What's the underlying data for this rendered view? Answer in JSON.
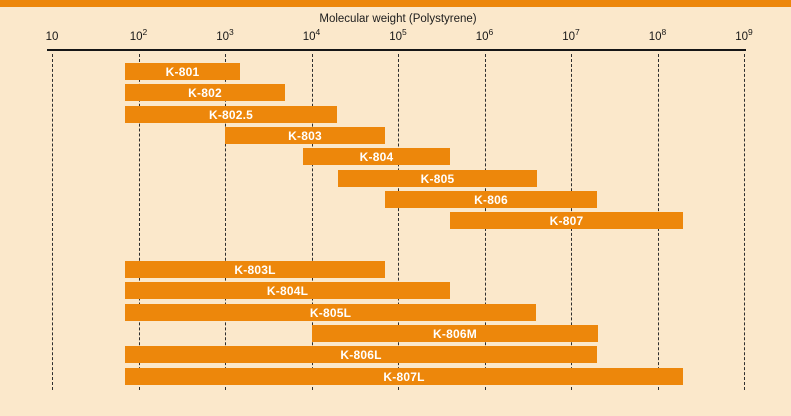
{
  "chart_data": {
    "type": "bar",
    "variant": "horizontal-range-bars",
    "title": "Molecular weight (Polystyrene)",
    "x_axis": {
      "scale": "log10",
      "min": 10,
      "max": 1000000000,
      "tick_label_base": "10",
      "tick_exponents": [
        1,
        2,
        3,
        4,
        5,
        6,
        7,
        8,
        9
      ]
    },
    "grid": "vertical-dashed-per-decade",
    "legend": "none",
    "groups": [
      {
        "name": "group-1",
        "bars": [
          {
            "label": "K-801",
            "range": [
              70,
              1500
            ]
          },
          {
            "label": "K-802",
            "range": [
              70,
              5000
            ]
          },
          {
            "label": "K-802.5",
            "range": [
              70,
              20000
            ]
          },
          {
            "label": "K-803",
            "range": [
              1000,
              70000
            ]
          },
          {
            "label": "K-804",
            "range": [
              8000,
              400000
            ]
          },
          {
            "label": "K-805",
            "range": [
              20000,
              4000000
            ]
          },
          {
            "label": "K-806",
            "range": [
              70000,
              20000000
            ]
          },
          {
            "label": "K-807",
            "range": [
              400000,
              200000000
            ]
          }
        ]
      },
      {
        "name": "group-2",
        "bars": [
          {
            "label": "K-803L",
            "range": [
              70,
              70000
            ]
          },
          {
            "label": "K-804L",
            "range": [
              70,
              400000
            ]
          },
          {
            "label": "K-805L",
            "range": [
              70,
              4000000
            ]
          },
          {
            "label": "K-806M",
            "range": [
              10000,
              20000000
            ]
          },
          {
            "label": "K-806L",
            "range": [
              70,
              20000000
            ]
          },
          {
            "label": "K-807L",
            "range": [
              70,
              200000000
            ]
          }
        ]
      }
    ],
    "colors": {
      "background": "#FBE8CB",
      "bar": "#ED870B",
      "bar_label": "#FFFFFF",
      "axis": "#161616",
      "gridline": "#2E2E2E",
      "top_accent": "#ED870B"
    }
  }
}
